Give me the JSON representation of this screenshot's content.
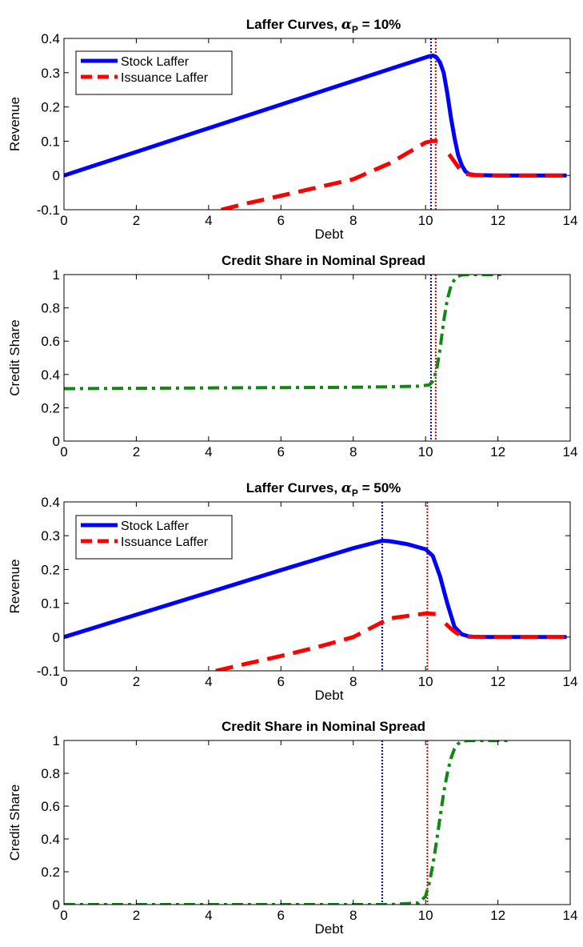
{
  "chart_data": [
    {
      "type": "line",
      "title": "Laffer Curves, ",
      "title_symbol": "α",
      "title_subscript": "P",
      "title_suffix": " = 10%",
      "xlabel": "Debt",
      "ylabel": "Revenue",
      "xlim": [
        0,
        14
      ],
      "ylim": [
        -0.1,
        0.4
      ],
      "xticks": [
        0,
        2,
        4,
        6,
        8,
        10,
        12,
        14
      ],
      "yticks": [
        -0.1,
        0,
        0.1,
        0.2,
        0.3,
        0.4
      ],
      "xtick_labels": [
        "0",
        "2",
        "4",
        "6",
        "8",
        "10",
        "12",
        "14"
      ],
      "ytick_labels": [
        "-0.1",
        "0",
        "0.1",
        "0.2",
        "0.3",
        "0.4"
      ],
      "grid": false,
      "legend_position": "top-left",
      "vlines": [
        {
          "x": 10.15,
          "color": "#0000dd"
        },
        {
          "x": 10.28,
          "color": "#dd0000"
        }
      ],
      "series": [
        {
          "name": "Stock Laffer",
          "color": "#0000ff",
          "style": "solid",
          "x": [
            0,
            2,
            4,
            6,
            8,
            10.1,
            10.2,
            10.3,
            10.4,
            10.5,
            10.6,
            10.7,
            10.8,
            10.9,
            11.0,
            11.1,
            11.2,
            11.4,
            12,
            13,
            13.9
          ],
          "y": [
            0,
            0.069,
            0.138,
            0.207,
            0.276,
            0.348,
            0.35,
            0.345,
            0.33,
            0.3,
            0.24,
            0.17,
            0.11,
            0.06,
            0.03,
            0.012,
            0.004,
            0.001,
            0,
            0,
            0
          ]
        },
        {
          "name": "Issuance Laffer",
          "color": "#ff0000",
          "style": "dashed",
          "segments": [
            {
              "x": [
                4.35,
                5,
                6,
                7,
                8,
                9,
                10,
                10.2,
                10.35
              ],
              "y": [
                -0.1,
                -0.083,
                -0.059,
                -0.035,
                -0.011,
                0.035,
                0.096,
                0.101,
                0.1
              ]
            },
            {
              "x": [
                10.65,
                10.8,
                10.95,
                11.1,
                11.3,
                12,
                13,
                13.9
              ],
              "y": [
                0.062,
                0.04,
                0.018,
                0.005,
                0.001,
                0,
                0,
                0
              ]
            }
          ]
        }
      ]
    },
    {
      "type": "line",
      "title": "Credit Share in Nominal Spread",
      "xlabel": "",
      "ylabel": "Credit Share",
      "xlim": [
        0,
        14
      ],
      "ylim": [
        0,
        1
      ],
      "xticks": [
        0,
        2,
        4,
        6,
        8,
        10,
        12,
        14
      ],
      "yticks": [
        0,
        0.2,
        0.4,
        0.6,
        0.8,
        1
      ],
      "xtick_labels": [
        "0",
        "2",
        "4",
        "6",
        "8",
        "10",
        "12",
        "14"
      ],
      "ytick_labels": [
        "0",
        "0.2",
        "0.4",
        "0.6",
        "0.8",
        "1"
      ],
      "grid": false,
      "vlines": [
        {
          "x": 10.15,
          "color": "#0000dd"
        },
        {
          "x": 10.28,
          "color": "#dd0000"
        }
      ],
      "series": [
        {
          "name": "",
          "color": "#118811",
          "style": "dashdot",
          "x": [
            0,
            2,
            4,
            6,
            8,
            9,
            9.8,
            10.1,
            10.2,
            10.3,
            10.4,
            10.5,
            10.6,
            10.7,
            10.8,
            10.9,
            11.0,
            11.2,
            12.2
          ],
          "y": [
            0.315,
            0.317,
            0.319,
            0.321,
            0.323,
            0.326,
            0.33,
            0.337,
            0.36,
            0.42,
            0.55,
            0.72,
            0.85,
            0.93,
            0.97,
            0.99,
            0.998,
            1.0,
            1.0
          ]
        }
      ]
    },
    {
      "type": "line",
      "title": "Laffer Curves, ",
      "title_symbol": "α",
      "title_subscript": "P",
      "title_suffix": " = 50%",
      "xlabel": "Debt",
      "ylabel": "Revenue",
      "xlim": [
        0,
        14
      ],
      "ylim": [
        -0.1,
        0.4
      ],
      "xticks": [
        0,
        2,
        4,
        6,
        8,
        10,
        12,
        14
      ],
      "yticks": [
        -0.1,
        0,
        0.1,
        0.2,
        0.3,
        0.4
      ],
      "xtick_labels": [
        "0",
        "2",
        "4",
        "6",
        "8",
        "10",
        "12",
        "14"
      ],
      "ytick_labels": [
        "-0.1",
        "0",
        "0.1",
        "0.2",
        "0.3",
        "0.4"
      ],
      "grid": false,
      "legend_position": "top-left",
      "vlines": [
        {
          "x": 8.8,
          "color": "#0000dd"
        },
        {
          "x": 10.05,
          "color": "#dd0000"
        }
      ],
      "series": [
        {
          "name": "Stock Laffer",
          "color": "#0000ff",
          "style": "solid",
          "x": [
            0,
            2,
            4,
            6,
            8,
            8.8,
            9.0,
            9.5,
            10.0,
            10.2,
            10.4,
            10.6,
            10.8,
            11.0,
            11.2,
            11.4,
            12,
            13,
            13.9
          ],
          "y": [
            0,
            0.066,
            0.132,
            0.198,
            0.263,
            0.285,
            0.284,
            0.275,
            0.26,
            0.24,
            0.18,
            0.1,
            0.03,
            0.008,
            0.002,
            0,
            0,
            0,
            0
          ]
        },
        {
          "name": "Issuance Laffer",
          "color": "#ff0000",
          "style": "dashed",
          "segments": [
            {
              "x": [
                4.2,
                5,
                6,
                7,
                8,
                9,
                10,
                10.3
              ],
              "y": [
                -0.1,
                -0.08,
                -0.056,
                -0.03,
                0.0,
                0.055,
                0.07,
                0.068
              ]
            },
            {
              "x": [
                10.55,
                10.7,
                10.85,
                11.0,
                11.2,
                12,
                13,
                13.9
              ],
              "y": [
                0.04,
                0.025,
                0.012,
                0.004,
                0.001,
                0,
                0,
                0
              ]
            }
          ]
        }
      ]
    },
    {
      "type": "line",
      "title": "Credit Share in Nominal Spread",
      "xlabel": "Debt",
      "ylabel": "Credit Share",
      "xlim": [
        0,
        14
      ],
      "ylim": [
        0,
        1
      ],
      "xticks": [
        0,
        2,
        4,
        6,
        8,
        10,
        12,
        14
      ],
      "yticks": [
        0,
        0.2,
        0.4,
        0.6,
        0.8,
        1
      ],
      "xtick_labels": [
        "0",
        "2",
        "4",
        "6",
        "8",
        "10",
        "12",
        "14"
      ],
      "ytick_labels": [
        "0",
        "0.2",
        "0.4",
        "0.6",
        "0.8",
        "1"
      ],
      "grid": false,
      "vlines": [
        {
          "x": 8.8,
          "color": "#0000dd"
        },
        {
          "x": 10.05,
          "color": "#dd0000"
        }
      ],
      "series": [
        {
          "name": "",
          "color": "#118811",
          "style": "dashdot",
          "x": [
            0,
            2,
            4,
            6,
            8,
            9,
            9.8,
            10.0,
            10.1,
            10.2,
            10.3,
            10.4,
            10.5,
            10.6,
            10.7,
            10.8,
            10.9,
            11.0,
            11.2,
            12.3
          ],
          "y": [
            0,
            0,
            0,
            0,
            0,
            0,
            0.01,
            0.05,
            0.13,
            0.24,
            0.38,
            0.53,
            0.68,
            0.8,
            0.89,
            0.95,
            0.98,
            0.995,
            1.0,
            1.0
          ]
        }
      ]
    }
  ]
}
